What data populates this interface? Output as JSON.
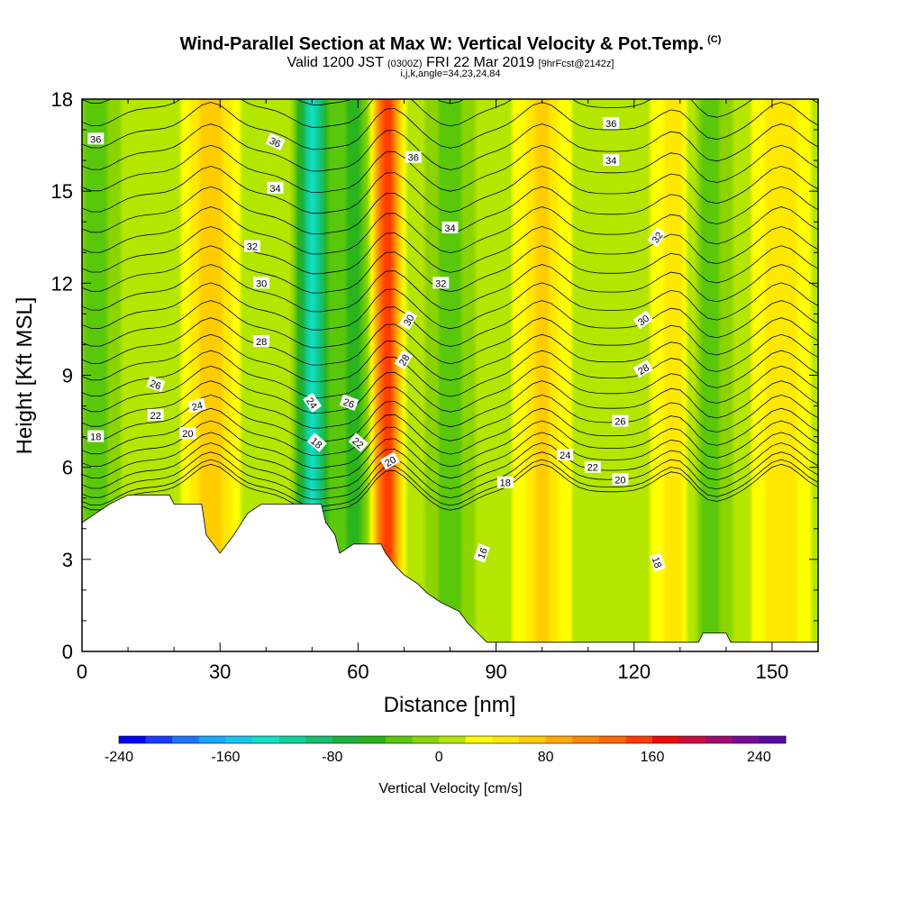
{
  "header": {
    "title": "Wind-Parallel Section at Max W: Vertical Velocity & Pot.Temp.",
    "copyright": "(C)",
    "valid_main": "Valid 1200 JST",
    "valid_utc": "(0300Z)",
    "valid_date": "FRI 22 Mar 2019",
    "forecast": "[9hrFcst@2142z]",
    "indices": "i,j,k,angle=34,23,24,84"
  },
  "chart_data": {
    "type": "heatmap",
    "xlabel": "Distance [nm]",
    "ylabel": "Height [Kft MSL]",
    "xlim": [
      0,
      160
    ],
    "ylim": [
      0,
      18
    ],
    "x_ticks": [
      0,
      30,
      60,
      90,
      120,
      150
    ],
    "y_ticks": [
      0,
      3,
      6,
      9,
      12,
      15,
      18
    ],
    "fill_field": "vertical velocity (cm/s)",
    "updrafts": [
      {
        "x": 66,
        "peak": 160
      },
      {
        "x": 28,
        "peak": 70
      },
      {
        "x": 100,
        "peak": 55
      },
      {
        "x": 130,
        "peak": 60
      },
      {
        "x": 152,
        "peak": 45
      }
    ],
    "downdrafts": [
      {
        "x": 50,
        "peak": -140
      },
      {
        "x": 60,
        "peak": -60
      },
      {
        "x": 80,
        "peak": -40
      },
      {
        "x": 135,
        "peak": -60
      },
      {
        "x": 3,
        "peak": -40
      }
    ],
    "terrain_kft": [
      [
        0,
        4.2
      ],
      [
        3,
        4.5
      ],
      [
        6,
        4.8
      ],
      [
        10,
        5.1
      ],
      [
        19,
        5.1
      ],
      [
        20,
        4.8
      ],
      [
        26,
        4.8
      ],
      [
        27,
        3.8
      ],
      [
        30,
        3.2
      ],
      [
        33,
        3.8
      ],
      [
        36,
        4.5
      ],
      [
        39,
        4.8
      ],
      [
        52,
        4.8
      ],
      [
        53,
        4.2
      ],
      [
        55,
        3.8
      ],
      [
        56,
        3.2
      ],
      [
        59,
        3.5
      ],
      [
        65,
        3.5
      ],
      [
        66,
        3.2
      ],
      [
        68,
        2.8
      ],
      [
        70,
        2.5
      ],
      [
        73,
        2.2
      ],
      [
        75,
        1.9
      ],
      [
        78,
        1.6
      ],
      [
        82,
        1.3
      ],
      [
        84,
        0.9
      ],
      [
        86,
        0.6
      ],
      [
        88,
        0.3
      ],
      [
        134,
        0.3
      ],
      [
        135,
        0.6
      ],
      [
        140,
        0.6
      ],
      [
        141,
        0.3
      ],
      [
        160,
        0.3
      ]
    ],
    "contour_labels": [
      {
        "text": "36",
        "x": 3,
        "y": 16.7
      },
      {
        "text": "36",
        "x": 42,
        "y": 16.6,
        "rot": 25
      },
      {
        "text": "34",
        "x": 42,
        "y": 15.1
      },
      {
        "text": "32",
        "x": 37,
        "y": 13.2
      },
      {
        "text": "30",
        "x": 39,
        "y": 12.0
      },
      {
        "text": "28",
        "x": 39,
        "y": 10.1
      },
      {
        "text": "26",
        "x": 16,
        "y": 8.7,
        "rot": 20
      },
      {
        "text": "24",
        "x": 25,
        "y": 8.0,
        "rot": -15
      },
      {
        "text": "22",
        "x": 16,
        "y": 7.7
      },
      {
        "text": "20",
        "x": 23,
        "y": 7.1
      },
      {
        "text": "18",
        "x": 3,
        "y": 7.0
      },
      {
        "text": "24",
        "x": 50,
        "y": 8.1,
        "rot": 55
      },
      {
        "text": "26",
        "x": 58,
        "y": 8.1,
        "rot": 20
      },
      {
        "text": "18",
        "x": 51,
        "y": 6.8,
        "rot": 40
      },
      {
        "text": "22",
        "x": 60,
        "y": 6.8,
        "rot": 40
      },
      {
        "text": "20",
        "x": 67,
        "y": 6.2,
        "rot": -30
      },
      {
        "text": "30",
        "x": 71,
        "y": 10.8,
        "rot": -60
      },
      {
        "text": "28",
        "x": 70,
        "y": 9.5,
        "rot": -60
      },
      {
        "text": "36",
        "x": 72,
        "y": 16.1
      },
      {
        "text": "34",
        "x": 80,
        "y": 13.8
      },
      {
        "text": "32",
        "x": 78,
        "y": 12.0
      },
      {
        "text": "18",
        "x": 92,
        "y": 5.5
      },
      {
        "text": "16",
        "x": 87,
        "y": 3.2,
        "rot": -70
      },
      {
        "text": "24",
        "x": 105,
        "y": 6.4
      },
      {
        "text": "22",
        "x": 111,
        "y": 6.0
      },
      {
        "text": "20",
        "x": 117,
        "y": 5.6
      },
      {
        "text": "26",
        "x": 117,
        "y": 7.5
      },
      {
        "text": "28",
        "x": 122,
        "y": 9.2,
        "rot": -30
      },
      {
        "text": "30",
        "x": 122,
        "y": 10.8,
        "rot": -35
      },
      {
        "text": "32",
        "x": 125,
        "y": 13.5,
        "rot": -55
      },
      {
        "text": "34",
        "x": 115,
        "y": 16.0
      },
      {
        "text": "36",
        "x": 115,
        "y": 17.2
      },
      {
        "text": "18",
        "x": 125,
        "y": 2.9,
        "rot": 70
      }
    ]
  },
  "colorbar": {
    "label": "Vertical Velocity [cm/s]",
    "min": -240,
    "step": 20,
    "tick_labels": [
      "-240",
      "-160",
      "-80",
      "0",
      "80",
      "160",
      "240"
    ],
    "tick_values": [
      -240,
      -160,
      -80,
      0,
      80,
      160,
      240
    ],
    "colors": [
      "#0000ff",
      "#1a3cff",
      "#1e78ff",
      "#1aa8ff",
      "#14c8f0",
      "#10e0c8",
      "#10d09a",
      "#14c070",
      "#1cb040",
      "#2ab41c",
      "#5ac80a",
      "#8cd400",
      "#b4e600",
      "#ffff00",
      "#ffe800",
      "#ffcc00",
      "#ffaa00",
      "#ff8a00",
      "#ff6a00",
      "#ff3c00",
      "#f00a0a",
      "#c80c3c",
      "#a00a6e",
      "#780a96",
      "#5a0aa0"
    ]
  }
}
